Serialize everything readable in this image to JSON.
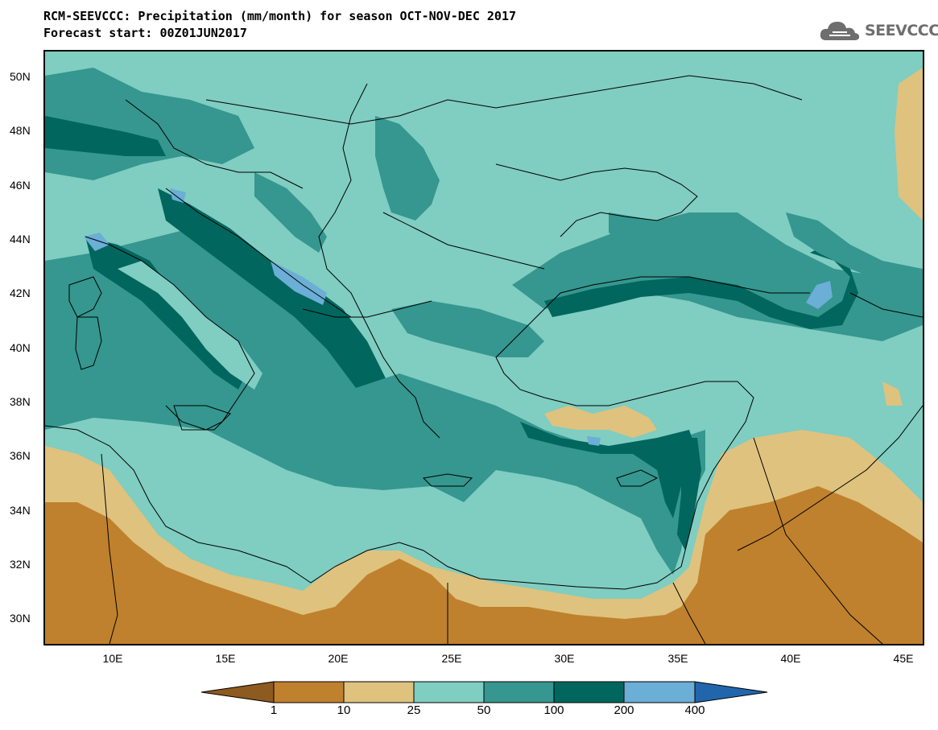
{
  "header": {
    "title_line1": "RCM-SEEVCCC: Precipitation (mm/month) for season OCT-NOV-DEC 2017",
    "title_line2": "Forecast start: 00Z01JUN2017",
    "logo_text": "SEEVCCC",
    "logo_icon": "cloud-icon"
  },
  "map": {
    "lat_labels": [
      "50N",
      "48N",
      "46N",
      "44N",
      "42N",
      "40N",
      "38N",
      "36N",
      "34N",
      "32N",
      "30N"
    ],
    "lon_labels": [
      "10E",
      "15E",
      "20E",
      "25E",
      "30E",
      "35E",
      "40E",
      "45E"
    ],
    "colors": {
      "lt1": "#8d5a1f",
      "c1_10": "#bf812d",
      "c10_25": "#dfc27d",
      "c25_50": "#80cdc1",
      "c50_100": "#35978f",
      "c100_200": "#01665e",
      "c200_400": "#6baed6",
      "gt400": "#2166ac",
      "border": "#000000"
    }
  },
  "legend": {
    "labels": [
      "1",
      "10",
      "25",
      "50",
      "100",
      "200",
      "400"
    ],
    "colors": [
      "#8d5a1f",
      "#bf812d",
      "#dfc27d",
      "#80cdc1",
      "#35978f",
      "#01665e",
      "#6baed6",
      "#2166ac"
    ]
  }
}
